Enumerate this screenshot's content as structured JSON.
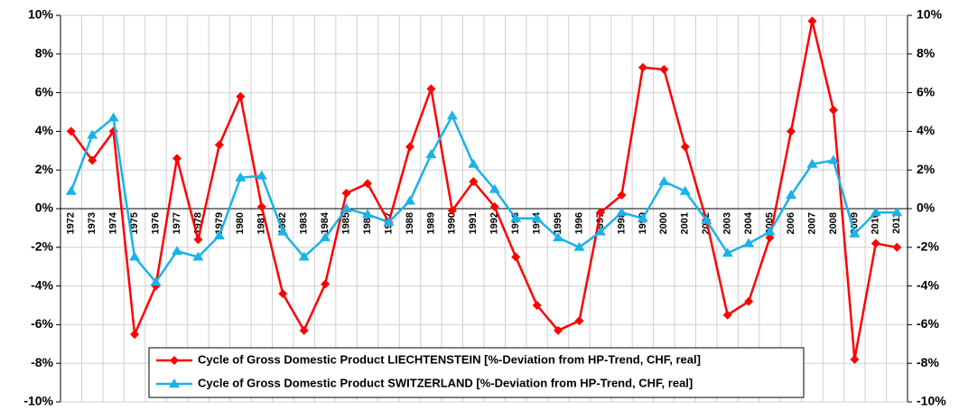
{
  "chart_data": {
    "type": "line",
    "categories": [
      "1972",
      "1973",
      "1974",
      "1975",
      "1976",
      "1977",
      "1978",
      "1979",
      "1980",
      "1981",
      "1982",
      "1983",
      "1984",
      "1985",
      "1986",
      "1987",
      "1988",
      "1989",
      "1990",
      "1991",
      "1992",
      "1993",
      "1994",
      "1995",
      "1996",
      "1997",
      "1998",
      "1999",
      "2000",
      "2001",
      "2002",
      "2003",
      "2004",
      "2005",
      "2006",
      "2007",
      "2008",
      "2009",
      "2010",
      "2011"
    ],
    "series": [
      {
        "name": "Cycle of Gross Domestic Product LIECHTENSTEIN [%-Deviation from HP-Trend, CHF, real]",
        "color": "#ff0000",
        "marker": "diamond",
        "values": [
          4.0,
          2.5,
          4.0,
          -6.5,
          -4.0,
          2.6,
          -1.6,
          3.3,
          5.8,
          0.1,
          -4.4,
          -6.3,
          -3.9,
          0.8,
          1.3,
          -0.7,
          3.2,
          6.2,
          -0.1,
          1.4,
          0.1,
          -2.5,
          -5.0,
          -6.3,
          -5.8,
          -0.2,
          0.7,
          7.3,
          7.2,
          3.2,
          -0.6,
          -5.5,
          -4.8,
          -1.5,
          4.0,
          9.7,
          5.1,
          -7.8,
          -1.8,
          -2.0
        ]
      },
      {
        "name": "Cycle of Gross Domestic Product SWITZERLAND [%-Deviation from HP-Trend, CHF, real]",
        "color": "#1ab2e8",
        "marker": "triangle",
        "values": [
          0.9,
          3.8,
          4.7,
          -2.5,
          -3.8,
          -2.2,
          -2.5,
          -1.4,
          1.6,
          1.7,
          -1.2,
          -2.5,
          -1.5,
          0.0,
          -0.3,
          -0.7,
          0.4,
          2.8,
          4.8,
          2.3,
          1.0,
          -0.5,
          -0.5,
          -1.5,
          -2.0,
          -1.2,
          -0.2,
          -0.5,
          1.4,
          0.9,
          -0.6,
          -2.3,
          -1.8,
          -1.2,
          0.7,
          2.3,
          2.5,
          -1.3,
          -0.2,
          -0.2
        ]
      }
    ],
    "ylim": [
      -10,
      10
    ],
    "yticks": [
      {
        "value": -10,
        "label": "-10%"
      },
      {
        "value": -8,
        "label": "-8%"
      },
      {
        "value": -6,
        "label": "-6%"
      },
      {
        "value": -4,
        "label": "-4%"
      },
      {
        "value": -2,
        "label": "-2%"
      },
      {
        "value": 0,
        "label": "0%"
      },
      {
        "value": 2,
        "label": "2%"
      },
      {
        "value": 4,
        "label": "4%"
      },
      {
        "value": 6,
        "label": "6%"
      },
      {
        "value": 8,
        "label": "8%"
      },
      {
        "value": 10,
        "label": "10%"
      }
    ],
    "y2lim": [
      -10,
      10
    ],
    "y2ticks": [
      {
        "value": -10,
        "label": "-10%"
      },
      {
        "value": -8,
        "label": "-8%"
      },
      {
        "value": -6,
        "label": "-6%"
      },
      {
        "value": -4,
        "label": "-4%"
      },
      {
        "value": -2,
        "label": "-2%"
      },
      {
        "value": 0,
        "label": "0%"
      },
      {
        "value": 2,
        "label": "2%"
      },
      {
        "value": 4,
        "label": "4%"
      },
      {
        "value": 6,
        "label": "6%"
      },
      {
        "value": 8,
        "label": "8%"
      },
      {
        "value": 10,
        "label": "10%"
      }
    ],
    "grid": true,
    "legend": "bottom"
  }
}
